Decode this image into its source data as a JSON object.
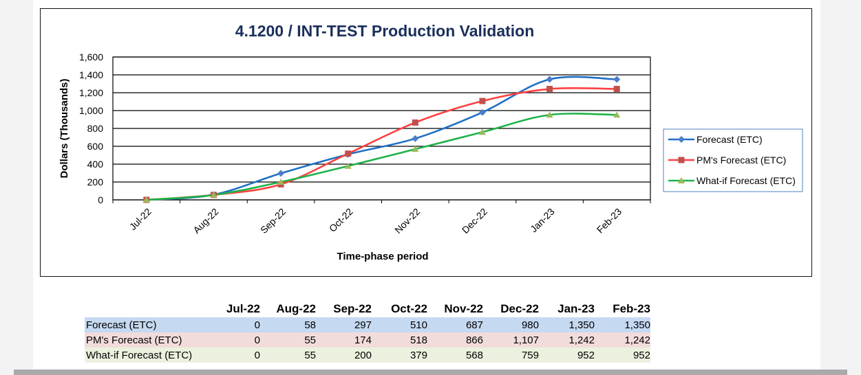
{
  "chart_data": {
    "type": "line",
    "title": "4.1200 / INT-TEST Production Validation",
    "xlabel": "Time-phase period",
    "ylabel": "Dollars (Thousands)",
    "ylim": [
      0,
      1600
    ],
    "yticks": [
      "0",
      "200",
      "400",
      "600",
      "800",
      "1,000",
      "1,200",
      "1,400",
      "1,600"
    ],
    "categories": [
      "Jul-22",
      "Aug-22",
      "Sep-22",
      "Oct-22",
      "Nov-22",
      "Dec-22",
      "Jan-23",
      "Feb-23"
    ],
    "grid": "horizontal",
    "legend_position": "right",
    "series": [
      {
        "name": "Forecast (ETC)",
        "color": "#1f6fc5",
        "marker": "diamond",
        "marker_color": "#4a7fc9",
        "values": [
          0,
          58,
          297,
          510,
          687,
          980,
          1350,
          1350
        ]
      },
      {
        "name": "PM's Forecast (ETC)",
        "color": "#ff4040",
        "marker": "square",
        "marker_color": "#c0504d",
        "values": [
          0,
          55,
          174,
          518,
          866,
          1107,
          1242,
          1242
        ]
      },
      {
        "name": "What-if Forecast (ETC)",
        "color": "#1fb24a",
        "marker": "triangle",
        "marker_color": "#9bbb59",
        "values": [
          0,
          55,
          200,
          379,
          568,
          759,
          952,
          952
        ]
      }
    ]
  },
  "table": {
    "headers": [
      "Jul-22",
      "Aug-22",
      "Sep-22",
      "Oct-22",
      "Nov-22",
      "Dec-22",
      "Jan-23",
      "Feb-23"
    ],
    "rows": [
      {
        "label": "Forecast (ETC)",
        "bg": "#c5d9f1",
        "values": [
          "0",
          "58",
          "297",
          "510",
          "687",
          "980",
          "1,350",
          "1,350"
        ]
      },
      {
        "label": "PM's Forecast (ETC)",
        "bg": "#f2dcdb",
        "values": [
          "0",
          "55",
          "174",
          "518",
          "866",
          "1,107",
          "1,242",
          "1,242"
        ]
      },
      {
        "label": "What-if Forecast (ETC)",
        "bg": "#ebf1de",
        "values": [
          "0",
          "55",
          "200",
          "379",
          "568",
          "759",
          "952",
          "952"
        ]
      }
    ]
  }
}
